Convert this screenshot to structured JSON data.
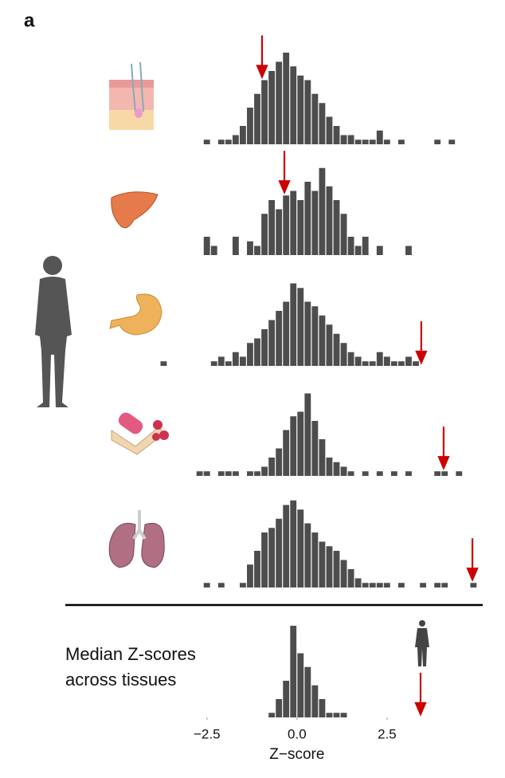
{
  "panel_label": "a",
  "chart_data": [
    {
      "type": "histogram",
      "color": "#4d4d4d",
      "marker": -0.97,
      "marker_color": "#cc0000",
      "xlim": [
        -3.8,
        5.0
      ],
      "ylim": [
        0,
        20
      ],
      "bins": [
        -3.8,
        -3.6,
        -3.4,
        -3.2,
        -3.0,
        -2.8,
        -2.6,
        -2.4,
        -2.2,
        -2.0,
        -1.8,
        -1.6,
        -1.4,
        -1.2,
        -1.0,
        -0.8,
        -0.6,
        -0.4,
        -0.2,
        0,
        0.2,
        0.4,
        0.6,
        0.8,
        1.0,
        1.2,
        1.4,
        1.6,
        1.8,
        2.0,
        2.2,
        2.4,
        2.6,
        2.8,
        3.0,
        3.2,
        3.4,
        3.6,
        3.8,
        4.0,
        4.2,
        4.4,
        4.6,
        4.8,
        5.0
      ],
      "values": [
        0,
        0,
        0,
        0,
        0,
        0,
        1,
        0,
        1,
        1,
        2,
        4,
        8,
        11,
        14,
        16,
        18,
        20,
        17,
        15,
        14,
        11,
        9,
        6,
        4,
        2,
        2,
        1,
        1,
        1,
        3,
        1,
        0,
        1,
        0,
        0,
        0,
        0,
        1,
        0,
        1,
        0,
        0,
        0
      ]
    },
    {
      "type": "histogram",
      "color": "#4d4d4d",
      "marker": -0.35,
      "marker_color": "#cc0000",
      "xlim": [
        -3.8,
        5.0
      ],
      "ylim": [
        0,
        20
      ],
      "bins": [
        -3.8,
        -3.6,
        -3.4,
        -3.2,
        -3.0,
        -2.8,
        -2.6,
        -2.4,
        -2.2,
        -2.0,
        -1.8,
        -1.6,
        -1.4,
        -1.2,
        -1.0,
        -0.8,
        -0.6,
        -0.4,
        -0.2,
        0,
        0.2,
        0.4,
        0.6,
        0.8,
        1.0,
        1.2,
        1.4,
        1.6,
        1.8,
        2.0,
        2.2,
        2.4,
        2.6,
        2.8,
        3.0,
        3.2,
        3.4,
        3.6,
        3.8,
        4.0,
        4.2,
        4.4,
        4.6,
        4.8,
        5.0
      ],
      "values": [
        0,
        0,
        0,
        0,
        0,
        0,
        4,
        2,
        0,
        0,
        4,
        0,
        3,
        2,
        9,
        12,
        10,
        13,
        14,
        12,
        16,
        14,
        19,
        15,
        12,
        9,
        4,
        2,
        4,
        0,
        2,
        0,
        0,
        0,
        2,
        0,
        0,
        0,
        0,
        0,
        0,
        0,
        0,
        0
      ]
    },
    {
      "type": "histogram",
      "color": "#4d4d4d",
      "marker": 3.45,
      "marker_color": "#cc0000",
      "xlim": [
        -3.8,
        5.0
      ],
      "ylim": [
        0,
        20
      ],
      "bins": [
        -3.8,
        -3.6,
        -3.4,
        -3.2,
        -3.0,
        -2.8,
        -2.6,
        -2.4,
        -2.2,
        -2.0,
        -1.8,
        -1.6,
        -1.4,
        -1.2,
        -1.0,
        -0.8,
        -0.6,
        -0.4,
        -0.2,
        0,
        0.2,
        0.4,
        0.6,
        0.8,
        1.0,
        1.2,
        1.4,
        1.6,
        1.8,
        2.0,
        2.2,
        2.4,
        2.6,
        2.8,
        3.0,
        3.2,
        3.4,
        3.6,
        3.8,
        4.0,
        4.2,
        4.4,
        4.6,
        4.8,
        5.0
      ],
      "values": [
        1,
        0,
        0,
        0,
        0,
        0,
        0,
        1,
        2,
        1,
        3,
        2,
        5,
        6,
        8,
        10,
        12,
        14,
        18,
        17,
        14,
        13,
        11,
        9,
        7,
        5,
        3,
        2,
        1,
        1,
        3,
        2,
        1,
        1,
        2,
        1,
        0,
        0,
        0,
        0,
        0,
        0,
        0,
        0
      ]
    },
    {
      "type": "histogram",
      "color": "#4d4d4d",
      "marker": 4.07,
      "marker_color": "#cc0000",
      "xlim": [
        -3.8,
        5.0
      ],
      "ylim": [
        0,
        20
      ],
      "bins": [
        -3.8,
        -3.6,
        -3.4,
        -3.2,
        -3.0,
        -2.8,
        -2.6,
        -2.4,
        -2.2,
        -2.0,
        -1.8,
        -1.6,
        -1.4,
        -1.2,
        -1.0,
        -0.8,
        -0.6,
        -0.4,
        -0.2,
        0,
        0.2,
        0.4,
        0.6,
        0.8,
        1.0,
        1.2,
        1.4,
        1.6,
        1.8,
        2.0,
        2.2,
        2.4,
        2.6,
        2.8,
        3.0,
        3.2,
        3.4,
        3.6,
        3.8,
        4.0,
        4.2,
        4.4,
        4.6,
        4.8,
        5.0
      ],
      "values": [
        0,
        0,
        0,
        0,
        0,
        1,
        1,
        0,
        1,
        1,
        1,
        0,
        1,
        1,
        2,
        4,
        6,
        10,
        13,
        14,
        18,
        12,
        8,
        4,
        3,
        2,
        1,
        0,
        1,
        0,
        1,
        0,
        1,
        0,
        1,
        0,
        0,
        0,
        1,
        1,
        0,
        1,
        0,
        0
      ]
    },
    {
      "type": "histogram",
      "color": "#4d4d4d",
      "marker": 4.87,
      "marker_color": "#cc0000",
      "xlim": [
        -3.8,
        5.0
      ],
      "ylim": [
        0,
        20
      ],
      "bins": [
        -3.8,
        -3.6,
        -3.4,
        -3.2,
        -3.0,
        -2.8,
        -2.6,
        -2.4,
        -2.2,
        -2.0,
        -1.8,
        -1.6,
        -1.4,
        -1.2,
        -1.0,
        -0.8,
        -0.6,
        -0.4,
        -0.2,
        0,
        0.2,
        0.4,
        0.6,
        0.8,
        1.0,
        1.2,
        1.4,
        1.6,
        1.8,
        2.0,
        2.2,
        2.4,
        2.6,
        2.8,
        3.0,
        3.2,
        3.4,
        3.6,
        3.8,
        4.0,
        4.2,
        4.4,
        4.6,
        4.8,
        5.0
      ],
      "values": [
        0,
        0,
        0,
        0,
        0,
        0,
        1,
        0,
        1,
        0,
        0,
        1,
        5,
        8,
        12,
        13,
        15,
        18,
        19,
        17,
        14,
        12,
        10,
        9,
        8,
        6,
        4,
        2,
        1,
        1,
        1,
        1,
        0,
        1,
        0,
        0,
        1,
        0,
        1,
        1,
        0,
        0,
        0,
        1
      ]
    },
    {
      "type": "histogram",
      "label_lines": [
        "Median Z-scores",
        "across tissues"
      ],
      "color": "#4d4d4d",
      "marker": 3.43,
      "marker_color": "#cc0000",
      "xlim": [
        -3.8,
        5.0
      ],
      "ylim": [
        0,
        20
      ],
      "xlabel": "Z−score",
      "xticks": [
        {
          "value": -2.5,
          "label": "−2.5"
        },
        {
          "value": 0,
          "label": "0.0"
        },
        2.5
      ],
      "bins": [
        -3.8,
        -3.6,
        -3.4,
        -3.2,
        -3.0,
        -2.8,
        -2.6,
        -2.4,
        -2.2,
        -2.0,
        -1.8,
        -1.6,
        -1.4,
        -1.2,
        -1.0,
        -0.8,
        -0.6,
        -0.4,
        -0.2,
        0,
        0.2,
        0.4,
        0.6,
        0.8,
        1.0,
        1.2,
        1.4,
        1.6,
        1.8,
        2.0,
        2.2,
        2.4,
        2.6,
        2.8,
        3.0,
        3.2,
        3.4,
        3.6,
        3.8,
        4.0,
        4.2,
        4.4,
        4.6,
        4.8,
        5.0
      ],
      "values": [
        0,
        0,
        0,
        0,
        0,
        0,
        0,
        0,
        0,
        0,
        0,
        0,
        0,
        0,
        0,
        1,
        4,
        8,
        20,
        14,
        11,
        7,
        4,
        1,
        1,
        1,
        0,
        0,
        0,
        0,
        0,
        0,
        0,
        0,
        0,
        0,
        0,
        0,
        0,
        0,
        0,
        0,
        0,
        0
      ]
    }
  ]
}
